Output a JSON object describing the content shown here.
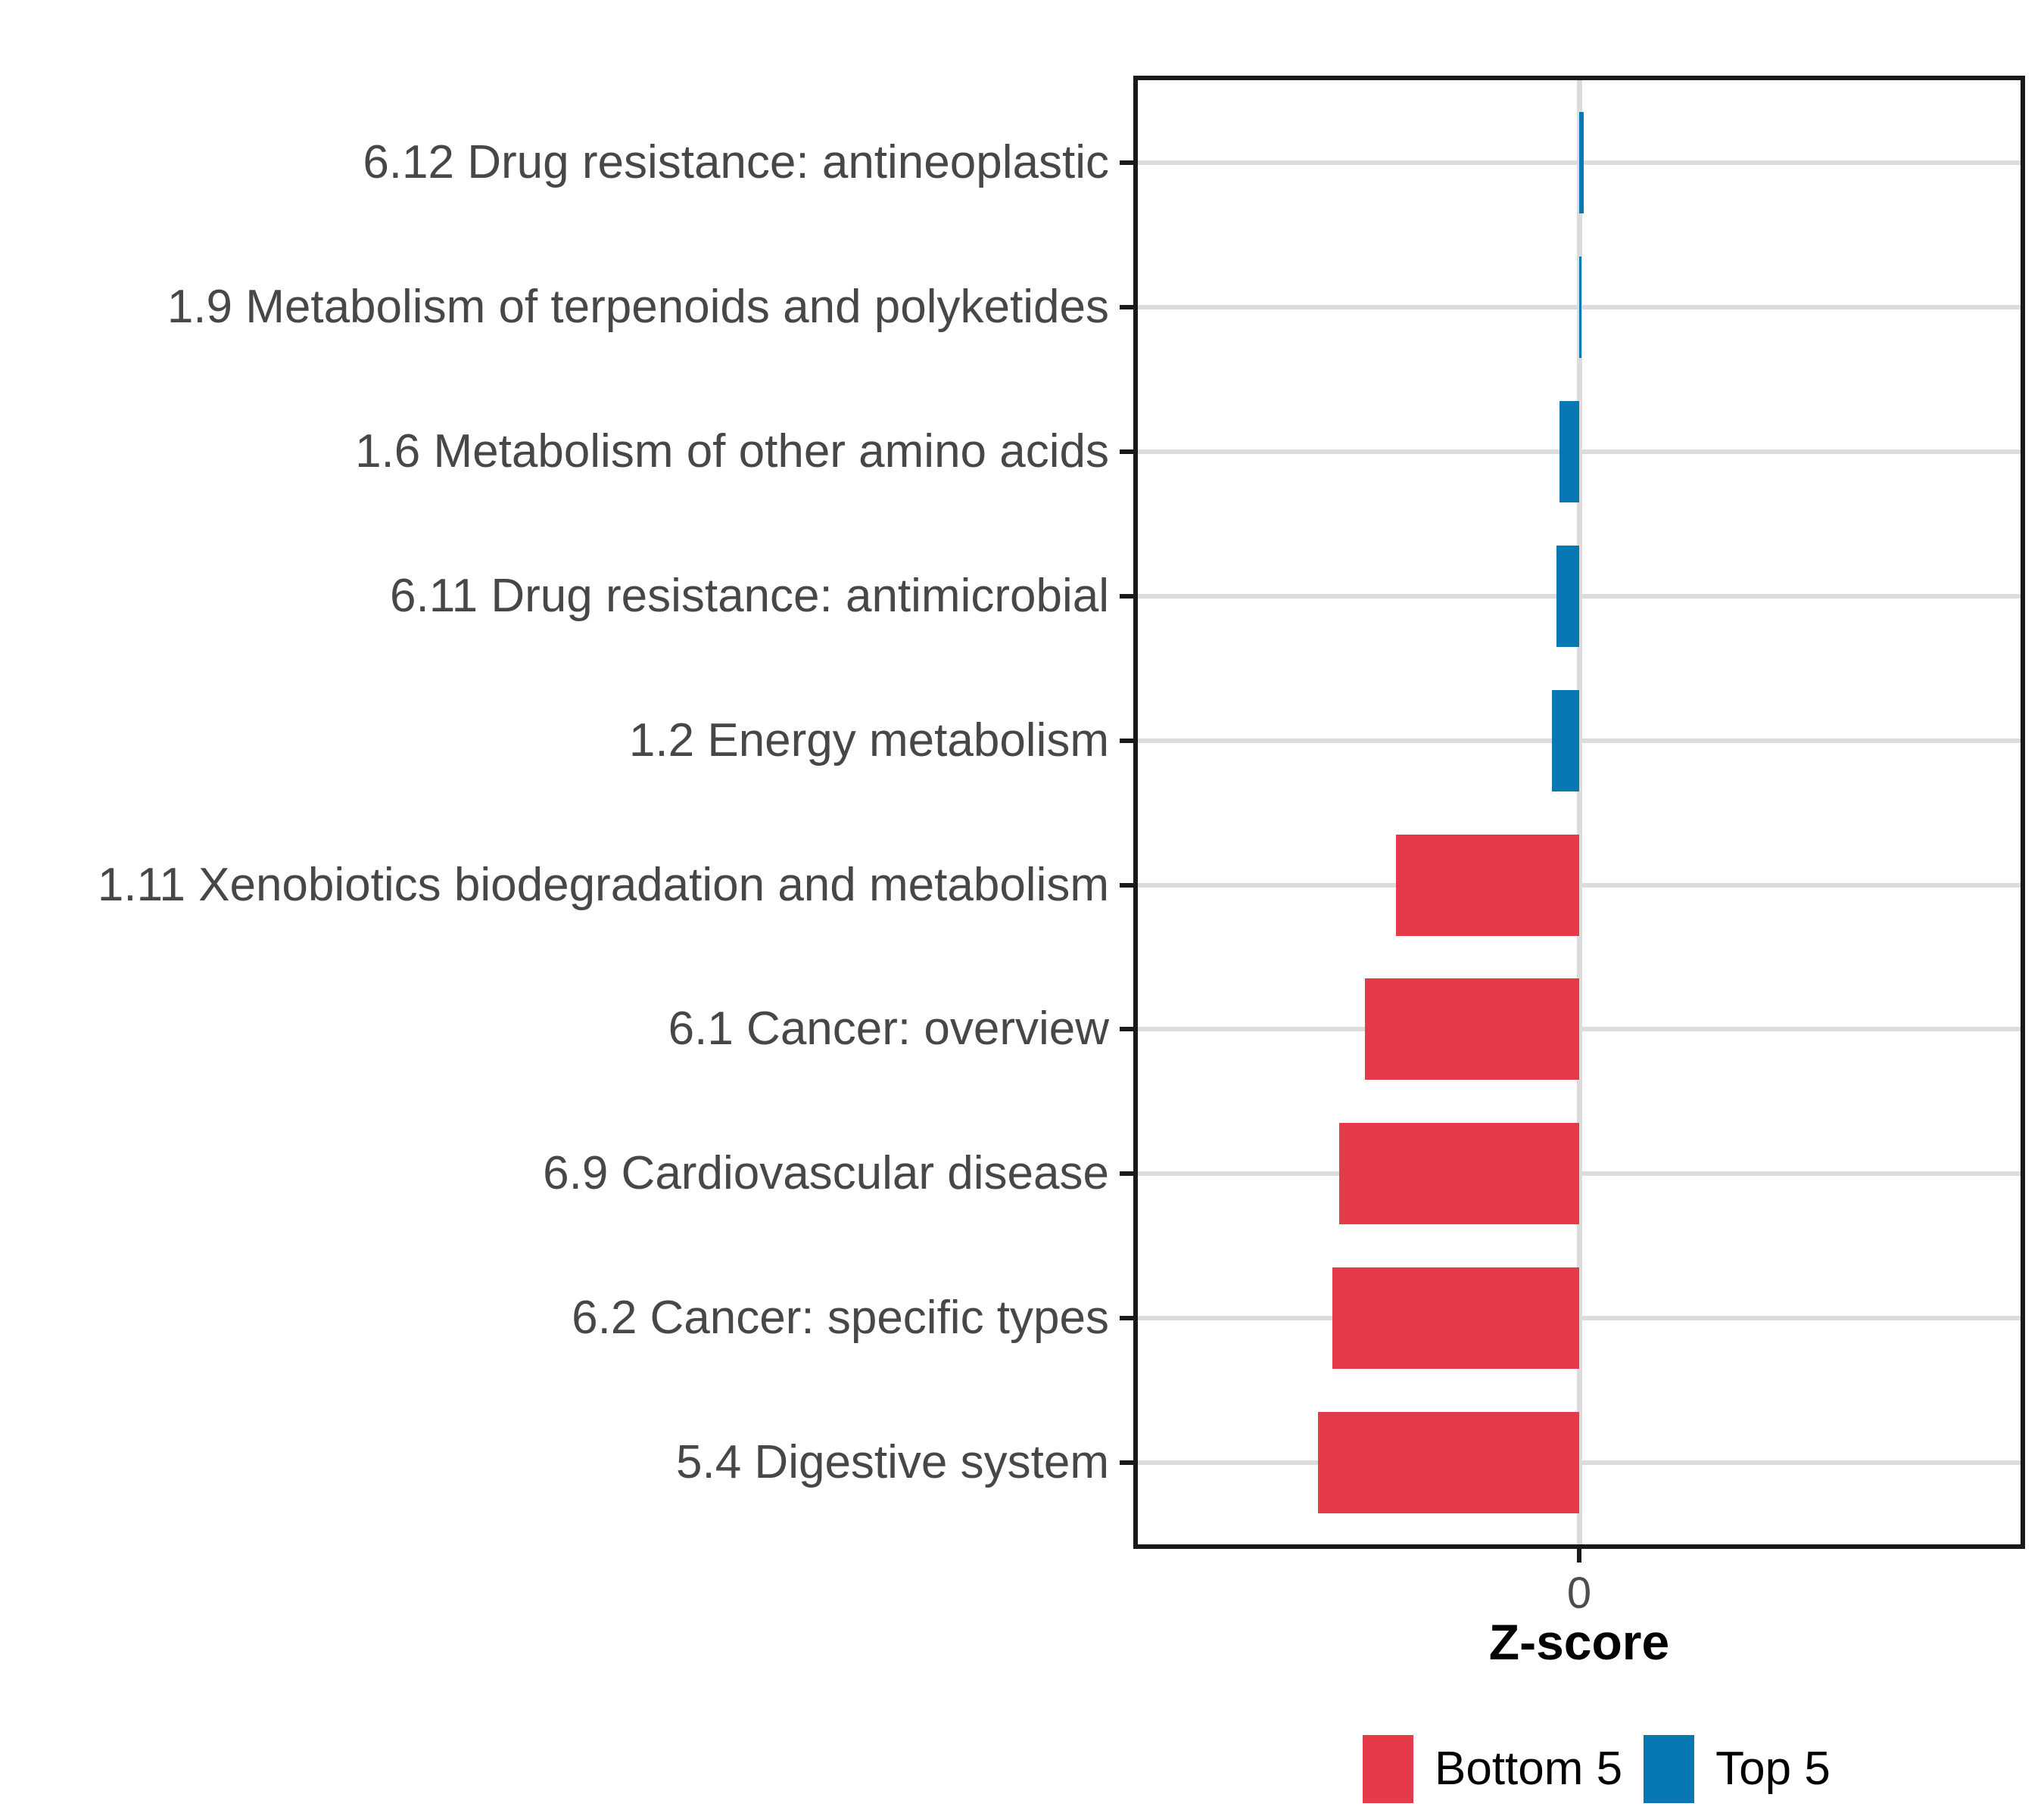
{
  "figure": {
    "x_axis": {
      "title": "Z-score",
      "tick_labels": [
        "0"
      ]
    },
    "legend": {
      "items": [
        {
          "label": "Bottom 5",
          "color": "#e43a49"
        },
        {
          "label": "Top 5",
          "color": "#0878b4"
        }
      ]
    }
  },
  "chart_data": {
    "type": "bar",
    "orientation": "horizontal",
    "title": "",
    "xlabel": "Z-score",
    "ylabel": "",
    "xlim": [
      -2.75,
      2.75
    ],
    "x_ticks": [
      0
    ],
    "grid": true,
    "legend_position": "bottom",
    "categories": [
      "6.12 Drug resistance: antineoplastic",
      "1.9 Metabolism of terpenoids and polyketides",
      "1.6 Metabolism of other amino acids",
      "6.11 Drug resistance: antimicrobial",
      "1.2 Energy metabolism",
      "1.11 Xenobiotics biodegradation and metabolism",
      "6.1 Cancer: overview",
      "6.9 Cardiovascular disease",
      "6.2 Cancer: specific types",
      "5.4 Digestive system"
    ],
    "bars": [
      {
        "category": "6.12 Drug resistance: antineoplastic",
        "value": 0.03,
        "group": "Top 5"
      },
      {
        "category": "1.9 Metabolism of terpenoids and polyketides",
        "value": 0.015,
        "group": "Top 5"
      },
      {
        "category": "1.6 Metabolism of other amino acids",
        "value": -0.12,
        "group": "Top 5"
      },
      {
        "category": "6.11 Drug resistance: antimicrobial",
        "value": -0.14,
        "group": "Top 5"
      },
      {
        "category": "1.2 Energy metabolism",
        "value": -0.17,
        "group": "Top 5"
      },
      {
        "category": "1.11 Xenobiotics biodegradation and metabolism",
        "value": -1.13,
        "group": "Bottom 5"
      },
      {
        "category": "6.1 Cancer: overview",
        "value": -1.32,
        "group": "Bottom 5"
      },
      {
        "category": "6.9 Cardiovascular disease",
        "value": -1.48,
        "group": "Bottom 5"
      },
      {
        "category": "6.2 Cancer: specific types",
        "value": -1.52,
        "group": "Bottom 5"
      },
      {
        "category": "5.4 Digestive system",
        "value": -1.61,
        "group": "Bottom 5"
      }
    ],
    "series_colors": {
      "Bottom 5": "#e43a49",
      "Top 5": "#0878b4"
    }
  },
  "colors": {
    "grid": "#dcdcdc",
    "axis": "#1a1a1a",
    "tick_text": "#4d4d4d",
    "category_text": "#474747",
    "background": "#ffffff"
  }
}
